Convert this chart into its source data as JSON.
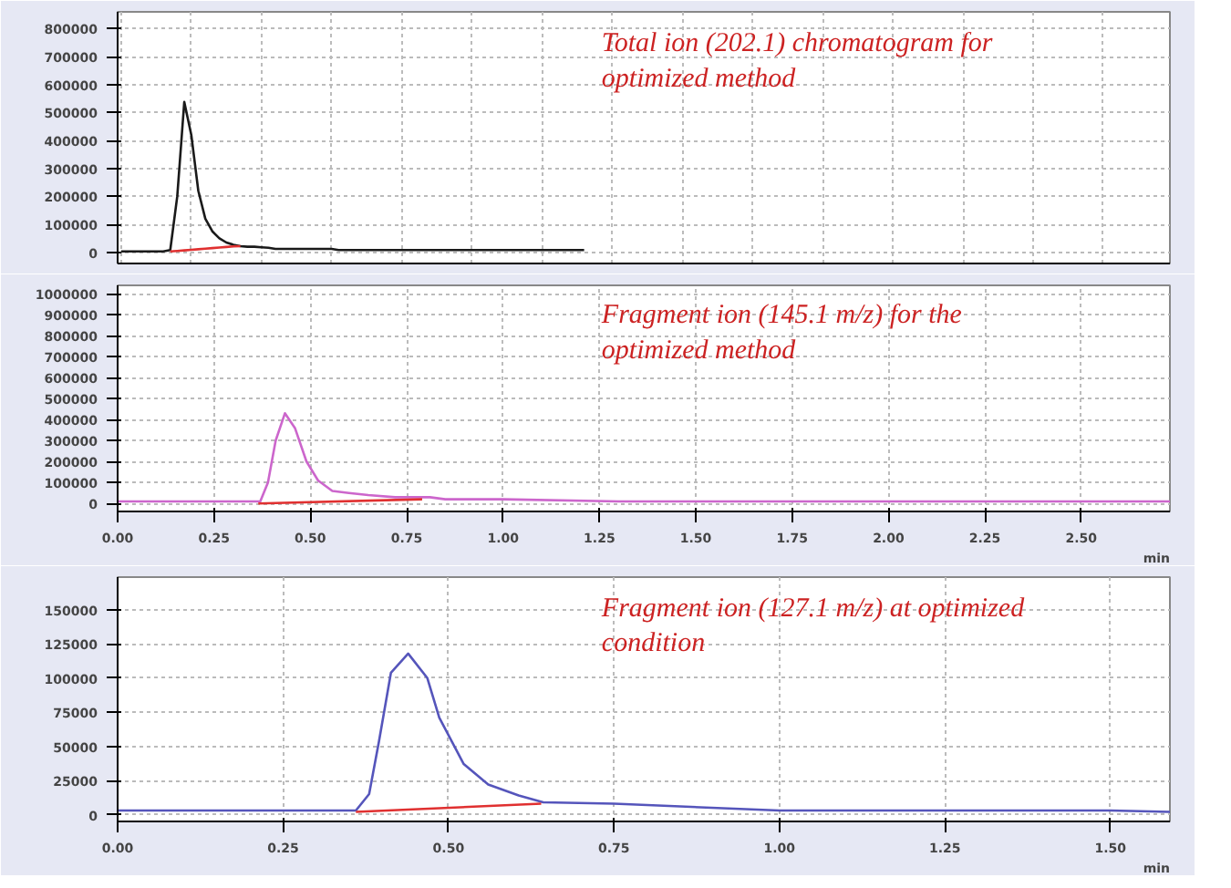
{
  "chart_data": [
    {
      "type": "line",
      "categories": [
        null,
        null,
        null,
        null,
        null,
        null,
        null,
        null,
        null,
        null,
        null,
        null,
        null,
        null,
        null,
        null,
        null,
        null,
        null,
        null,
        null,
        null,
        null,
        null,
        null,
        null,
        null,
        null,
        null,
        null,
        null,
        null,
        null,
        null,
        null,
        null,
        null,
        null,
        null,
        null,
        null,
        null,
        null,
        null,
        null,
        null,
        null,
        null,
        null,
        null,
        null,
        null,
        null,
        null,
        null,
        null,
        null,
        null,
        null,
        null,
        null,
        null,
        null,
        null,
        null,
        null,
        null,
        null,
        null,
        null,
        null,
        null,
        null,
        null,
        null,
        null,
        null,
        null,
        null,
        null,
        null,
        null,
        null,
        null,
        null,
        null,
        null,
        null,
        null,
        null,
        null,
        null,
        null,
        null,
        null,
        null,
        null,
        null,
        null,
        null,
        null,
        null,
        null,
        null,
        null,
        null,
        null,
        null,
        null,
        null,
        null,
        null,
        null,
        null,
        null,
        null,
        null,
        null,
        null,
        null,
        null,
        null,
        null,
        null,
        null,
        null,
        null,
        null,
        null,
        null,
        null,
        null,
        null,
        null,
        null,
        null,
        null,
        null,
        null,
        null,
        null,
        null,
        null,
        null,
        null,
        null,
        null,
        null,
        null,
        null
      ],
      "series": [
        {
          "color": "#1a1a1a",
          "values": [
            3000,
            3000,
            3000,
            3000,
            3000,
            3000,
            3000,
            8000,
            200000,
            538000,
            420000,
            220000,
            120000,
            75000,
            50000,
            35000,
            27000,
            22000,
            20000,
            20000,
            18000,
            16000,
            12000,
            12000,
            12000,
            12000,
            12000,
            12000,
            12000,
            12000,
            12000,
            8000,
            8000,
            8000,
            8000,
            8000,
            8000,
            8000,
            8000,
            8000,
            8000,
            8000,
            8000,
            8000,
            8000,
            8000,
            8000,
            8000,
            8000,
            8000,
            8000,
            8000,
            8000,
            8000,
            8000,
            8000,
            8000,
            8000,
            8000,
            8000,
            8000,
            8000,
            8000,
            8000,
            8000,
            8000,
            8000,
            null,
            null,
            null,
            null,
            null,
            null,
            null,
            null,
            null,
            null,
            null,
            null,
            null,
            null,
            null,
            null,
            null,
            null,
            null,
            null,
            null,
            null,
            null,
            null,
            null,
            null,
            null,
            null,
            null,
            null,
            null,
            null,
            null,
            null,
            null,
            null,
            null,
            null,
            null,
            null,
            null,
            null,
            null,
            null,
            null,
            null,
            null,
            null,
            null,
            null,
            null,
            null,
            null,
            null,
            null,
            null,
            null,
            null,
            null,
            null,
            null,
            null,
            null,
            null,
            null,
            null,
            null,
            null,
            null,
            null,
            null,
            null,
            null,
            null,
            null,
            null,
            null,
            null,
            null,
            null,
            null,
            null,
            null
          ]
        },
        {
          "color": "#e03030",
          "values": [
            null,
            null,
            null,
            null,
            null,
            null,
            null,
            3000,
            5000,
            7000,
            9000,
            11000,
            13000,
            15000,
            17000,
            19000,
            21000,
            22000,
            null,
            null,
            null,
            null,
            null,
            null,
            null,
            null,
            null,
            null,
            null,
            null,
            null,
            null,
            null,
            null,
            null,
            null,
            null,
            null,
            null,
            null,
            null,
            null,
            null,
            null,
            null,
            null,
            null,
            null,
            null,
            null,
            null,
            null,
            null,
            null,
            null,
            null,
            null,
            null,
            null,
            null,
            null,
            null,
            null,
            null,
            null,
            null,
            null,
            null,
            null,
            null,
            null,
            null,
            null,
            null,
            null,
            null,
            null,
            null,
            null,
            null,
            null,
            null,
            null,
            null,
            null,
            null,
            null,
            null,
            null,
            null,
            null,
            null,
            null,
            null,
            null,
            null,
            null,
            null,
            null,
            null,
            null,
            null,
            null,
            null,
            null,
            null,
            null,
            null,
            null,
            null,
            null,
            null,
            null,
            null,
            null,
            null,
            null,
            null,
            null,
            null,
            null,
            null,
            null,
            null,
            null,
            null,
            null,
            null,
            null,
            null,
            null,
            null,
            null,
            null,
            null,
            null,
            null,
            null,
            null,
            null,
            null,
            null,
            null,
            null,
            null,
            null,
            null,
            null,
            null,
            null
          ]
        }
      ],
      "ylim": [
        -40000,
        860000
      ],
      "yticks": [
        0,
        100000,
        200000,
        300000,
        400000,
        500000,
        600000,
        700000,
        800000
      ],
      "grid": true,
      "tick_labels": "y",
      "line_style": "solid",
      "marker": "none",
      "annotations": [
        "Total ion (202.1) chromatogram for optimized method"
      ]
    },
    {
      "type": "line",
      "xlim": [
        0,
        2.73
      ],
      "ylim": [
        -38000,
        1040000
      ],
      "xticks": [
        {
          "value": 0,
          "label": "0.00"
        },
        {
          "value": 0.25,
          "label": "0.25"
        },
        {
          "value": 0.5,
          "label": "0.50"
        },
        {
          "value": 0.75,
          "label": "0.75"
        },
        {
          "value": 1,
          "label": "1.00"
        },
        {
          "value": 1.25,
          "label": "1.25"
        },
        {
          "value": 1.5,
          "label": "1.50"
        },
        {
          "value": 1.75,
          "label": "1.75"
        },
        {
          "value": 2,
          "label": "2.00"
        },
        {
          "value": 2.25,
          "label": "2.25"
        },
        {
          "value": 2.5,
          "label": "2.50"
        }
      ],
      "yticks": [
        0,
        100000,
        200000,
        300000,
        400000,
        500000,
        600000,
        700000,
        800000,
        900000,
        1000000
      ],
      "xlabel": "min",
      "series": [
        {
          "color": "#cc66cc",
          "x": [
            0,
            0.1,
            0.2,
            0.3,
            0.37,
            0.39,
            0.41,
            0.434,
            0.46,
            0.49,
            0.52,
            0.557,
            0.6,
            0.65,
            0.72,
            0.81,
            0.85,
            1.0,
            1.3,
            1.6,
            2.0,
            2.4,
            2.73
          ],
          "values": [
            10000,
            10000,
            10000,
            10000,
            10000,
            100000,
            300000,
            430000,
            360000,
            200000,
            110000,
            60000,
            50000,
            40000,
            30000,
            30000,
            20000,
            20000,
            10000,
            10000,
            10000,
            10000,
            10000
          ]
        },
        {
          "color": "#e03030",
          "x": [
            0.365,
            0.79
          ],
          "values": [
            0,
            20000
          ]
        }
      ],
      "grid": true,
      "line_style": "solid",
      "marker": "none",
      "annotations": [
        "Fragment ion (145.1 m/z) for the optimized method"
      ]
    },
    {
      "type": "line",
      "xlim": [
        0,
        1.59
      ],
      "ylim": [
        -5000,
        174000
      ],
      "xticks": [
        {
          "value": 0,
          "label": "0.00"
        },
        {
          "value": 0.25,
          "label": "0.25"
        },
        {
          "value": 0.5,
          "label": "0.50"
        },
        {
          "value": 0.75,
          "label": "0.75"
        },
        {
          "value": 1,
          "label": "1.00"
        },
        {
          "value": 1.25,
          "label": "1.25"
        },
        {
          "value": 1.5,
          "label": "1.50"
        }
      ],
      "yticks": [
        0,
        25000,
        50000,
        75000,
        100000,
        125000,
        150000
      ],
      "xlabel": "min",
      "series": [
        {
          "color": "#5555bb",
          "x": [
            0,
            0.2,
            0.36,
            0.38,
            0.395,
            0.413,
            0.439,
            0.468,
            0.486,
            0.523,
            0.56,
            0.606,
            0.643,
            0.75,
            0.85,
            1.0,
            1.25,
            1.5,
            1.59
          ],
          "values": [
            3000,
            3000,
            3000,
            15000,
            54000,
            104000,
            118000,
            100000,
            71000,
            37000,
            22000,
            14000,
            9000,
            8000,
            6000,
            3000,
            3000,
            3000,
            2000
          ]
        },
        {
          "color": "#e03030",
          "x": [
            0.36,
            0.64
          ],
          "values": [
            2000,
            8000
          ]
        }
      ],
      "grid": true,
      "line_style": "solid",
      "marker": "none",
      "annotations": [
        "Fragment ion  (127.1 m/z) at optimized condition"
      ]
    }
  ]
}
